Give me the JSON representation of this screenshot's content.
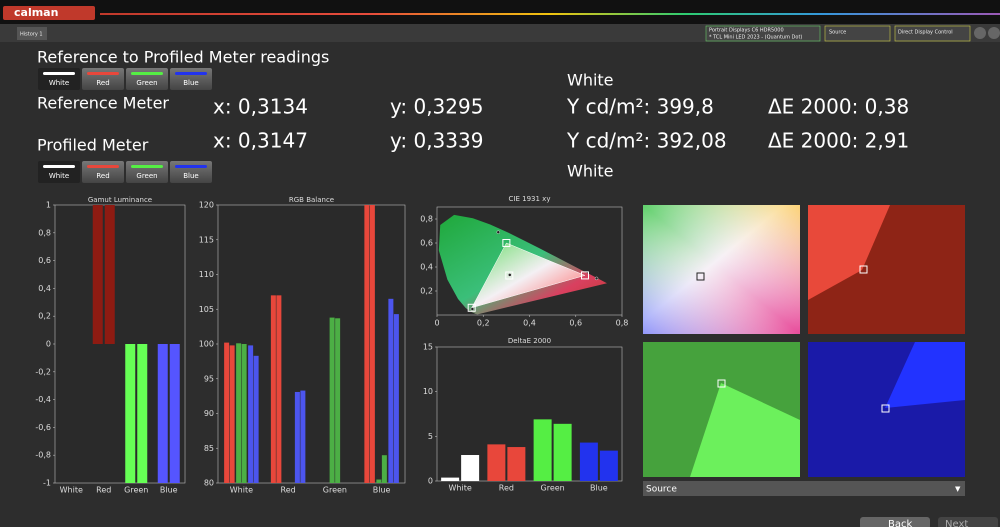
{
  "app": {
    "logo": "calman",
    "tab": "History 1"
  },
  "toolbar": {
    "display": "Portrait Displays C6 HDR5000",
    "display_sub": "* TCL Mini LED 2023 - (Quantum Dot)",
    "source": "Source",
    "control": "Direct Display Control"
  },
  "readings": {
    "title": "Reference to Profiled Meter readings",
    "buttons": [
      "White",
      "Red",
      "Green",
      "Blue"
    ],
    "target_top": "White",
    "target_bottom": "White",
    "reference": {
      "label": "Reference Meter",
      "x": "x: 0,3134",
      "y": "y: 0,3295",
      "Y": "Y cd/m²: 399,8",
      "de": "ΔE 2000: 0,38"
    },
    "profiled": {
      "label": "Profiled Meter",
      "x": "x: 0,3147",
      "y": "y: 0,3339",
      "Y": "Y cd/m²: 392,08",
      "de": "ΔE 2000: 2,91"
    }
  },
  "charts": {
    "gamut": {
      "type": "bar",
      "title": "Gamut Luminance",
      "categories": [
        "White",
        "Red",
        "Green",
        "Blue"
      ],
      "colors": [
        "#ffffff",
        "#8e1b12",
        "#66ff55",
        "#5555ff"
      ],
      "values": [
        [
          0,
          0
        ],
        [
          1,
          1
        ],
        [
          -1,
          -1
        ],
        [
          -1,
          -1
        ]
      ],
      "ylim": [
        -1,
        1
      ],
      "yticks": [
        -1,
        {
          "value": -0.8,
          "label": "-0,8"
        },
        {
          "value": -0.6,
          "label": "-0,6"
        },
        {
          "value": -0.4,
          "label": "-0,4"
        },
        {
          "value": -0.2,
          "label": "-0,2"
        },
        0,
        {
          "value": 0.2,
          "label": "0,2"
        },
        {
          "value": 0.4,
          "label": "0,4"
        },
        {
          "value": 0.6,
          "label": "0,6"
        },
        {
          "value": 0.8,
          "label": "0,8"
        },
        1
      ]
    },
    "rgb": {
      "type": "bar",
      "title": "RGB Balance",
      "categories": [
        "White",
        "Red",
        "Green",
        "Blue"
      ],
      "series": [
        {
          "color": "#e8473b",
          "values": [
            [
              100.2,
              99.8
            ],
            [
              107,
              107
            ],
            [
              null,
              null
            ],
            [
              120,
              120
            ]
          ]
        },
        {
          "color": "#4caf45",
          "values": [
            [
              100.1,
              100
            ],
            [
              null,
              null
            ],
            [
              103.8,
              103.7
            ],
            [
              80.5,
              84
            ]
          ]
        },
        {
          "color": "#4c55ee",
          "values": [
            [
              99.8,
              98.3
            ],
            [
              93.1,
              93.3
            ],
            [
              null,
              null
            ],
            [
              106.5,
              104.3
            ]
          ]
        }
      ],
      "ylim": [
        80,
        120
      ],
      "yticks": [
        80,
        85,
        90,
        95,
        100,
        105,
        110,
        115,
        120
      ]
    },
    "cie": {
      "type": "scatter",
      "title": "CIE 1931 xy",
      "targets": {
        "x": [
          0.3127,
          0.64,
          0.3,
          0.15
        ],
        "y": [
          0.329,
          0.33,
          0.6,
          0.06
        ]
      },
      "measured": {
        "x": [
          0.3147,
          0.69,
          0.265,
          0.153
        ],
        "y": [
          0.3339,
          0.305,
          0.69,
          0.05
        ]
      },
      "xlim": [
        0,
        0.8
      ],
      "ylim": [
        0,
        0.9
      ],
      "xticks": [
        0,
        {
          "value": 0.2,
          "label": "0,2"
        },
        {
          "value": 0.4,
          "label": "0,4"
        },
        {
          "value": 0.6,
          "label": "0,6"
        },
        {
          "value": 0.8,
          "label": "0,8"
        }
      ],
      "yticks": [
        {
          "value": 0.2,
          "label": "0,2"
        },
        {
          "value": 0.4,
          "label": "0,4"
        },
        {
          "value": 0.6,
          "label": "0,6"
        },
        {
          "value": 0.8,
          "label": "0,8"
        }
      ]
    },
    "deltae": {
      "type": "bar",
      "title": "DeltaE 2000",
      "categories": [
        "White",
        "Red",
        "Green",
        "Blue"
      ],
      "colors": [
        "#ffffff",
        "#e8473b",
        "#55ee44",
        "#2233ee"
      ],
      "values": [
        [
          0.38,
          2.91
        ],
        [
          4.1,
          3.8
        ],
        [
          6.9,
          6.4
        ],
        [
          4.3,
          3.4
        ]
      ],
      "ylim": [
        0,
        15
      ],
      "yticks": [
        0,
        5,
        10,
        15
      ]
    }
  },
  "source_select": "Source",
  "nav": {
    "back": "Back",
    "next": "Next"
  }
}
